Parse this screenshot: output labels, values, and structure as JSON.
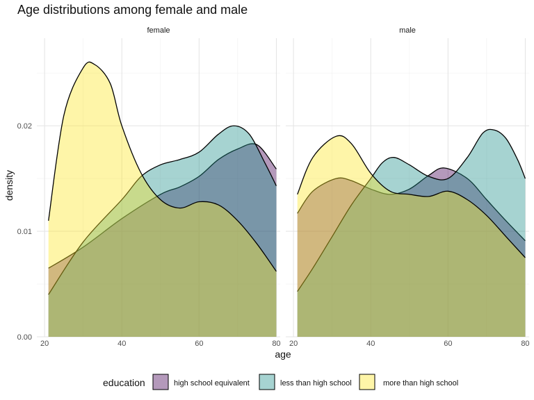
{
  "chart_data": {
    "type": "area",
    "title": "Age distributions among female and male",
    "xlabel": "age",
    "ylabel": "density",
    "xlim": [
      21,
      80
    ],
    "ylim": [
      0,
      0.0258
    ],
    "x_ticks": [
      "20",
      "40",
      "60",
      "80"
    ],
    "y_ticks": [
      "0.00",
      "0.01",
      "0.02"
    ],
    "grid": true,
    "legend_position": "bottom",
    "legend_title": "education",
    "series_styles": [
      {
        "name": "high school equivalent",
        "color": "#440154"
      },
      {
        "name": "less than high school",
        "color": "#21908C"
      },
      {
        "name": "more than high school",
        "color": "#FDE725"
      }
    ],
    "panels": [
      {
        "strip": "female",
        "series": [
          {
            "name": "high school equivalent",
            "x": [
              21,
              30,
              40,
              50,
              55,
              60,
              65,
              70,
              75,
              80
            ],
            "values": [
              0.0065,
              0.0085,
              0.0112,
              0.0135,
              0.0142,
              0.0152,
              0.0168,
              0.0178,
              0.0182,
              0.0159
            ]
          },
          {
            "name": "less than high school",
            "x": [
              21,
              30,
              40,
              45,
              50,
              55,
              60,
              65,
              69,
              73,
              77,
              80
            ],
            "values": [
              0.004,
              0.009,
              0.013,
              0.0152,
              0.0163,
              0.0168,
              0.0175,
              0.0192,
              0.02,
              0.0192,
              0.0165,
              0.0143
            ]
          },
          {
            "name": "more than high school",
            "x": [
              21,
              25,
              30,
              33,
              37,
              40,
              45,
              50,
              55,
              60,
              65,
              70,
              75,
              80
            ],
            "values": [
              0.011,
              0.021,
              0.0255,
              0.0258,
              0.024,
              0.02,
              0.0155,
              0.013,
              0.0122,
              0.0128,
              0.0125,
              0.011,
              0.0088,
              0.0062
            ]
          }
        ]
      },
      {
        "strip": "male",
        "series": [
          {
            "name": "high school equivalent",
            "x": [
              21,
              25,
              31,
              35,
              40,
              45,
              50,
              55,
              59,
              65,
              70,
              75,
              80
            ],
            "values": [
              0.0117,
              0.0138,
              0.015,
              0.0148,
              0.014,
              0.0135,
              0.014,
              0.0153,
              0.016,
              0.015,
              0.013,
              0.011,
              0.0091
            ]
          },
          {
            "name": "less than high school",
            "x": [
              21,
              25,
              30,
              35,
              40,
              43,
              46,
              50,
              55,
              60,
              65,
              69,
              72,
              75,
              78,
              80
            ],
            "values": [
              0.0043,
              0.0065,
              0.0095,
              0.0125,
              0.015,
              0.0165,
              0.017,
              0.0163,
              0.0152,
              0.015,
              0.017,
              0.0193,
              0.0196,
              0.0188,
              0.0168,
              0.015
            ]
          },
          {
            "name": "more than high school",
            "x": [
              21,
              25,
              31,
              35,
              40,
              45,
              50,
              55,
              60,
              65,
              70,
              75,
              80
            ],
            "values": [
              0.0135,
              0.017,
              0.019,
              0.0183,
              0.0155,
              0.0138,
              0.0135,
              0.0133,
              0.0138,
              0.013,
              0.0115,
              0.0095,
              0.0075
            ]
          }
        ]
      }
    ]
  }
}
